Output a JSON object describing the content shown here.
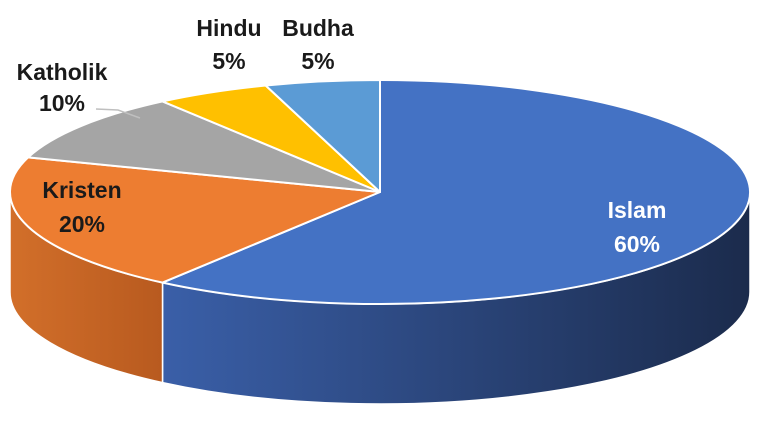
{
  "chart_data": {
    "type": "pie",
    "style": "3d",
    "title": "",
    "slices": [
      {
        "label": "Islam",
        "value": 60,
        "value_label": "60%",
        "color": "#4472C4",
        "side_color": "#2E4B82",
        "label_color": "#ffffff"
      },
      {
        "label": "Kristen",
        "value": 20,
        "value_label": "20%",
        "color": "#ED7D31",
        "side_color": "#C55F1E",
        "label_color": "#1a1a1a"
      },
      {
        "label": "Katholik",
        "value": 10,
        "value_label": "10%",
        "color": "#A5A5A5",
        "side_color": "#808080",
        "label_color": "#1a1a1a"
      },
      {
        "label": "Hindu",
        "value": 5,
        "value_label": "5%",
        "color": "#FFC000",
        "side_color": "#C79500",
        "label_color": "#1a1a1a"
      },
      {
        "label": "Budha",
        "value": 5,
        "value_label": "5%",
        "color": "#5B9BD5",
        "side_color": "#3B73A8",
        "label_color": "#1a1a1a"
      }
    ]
  }
}
